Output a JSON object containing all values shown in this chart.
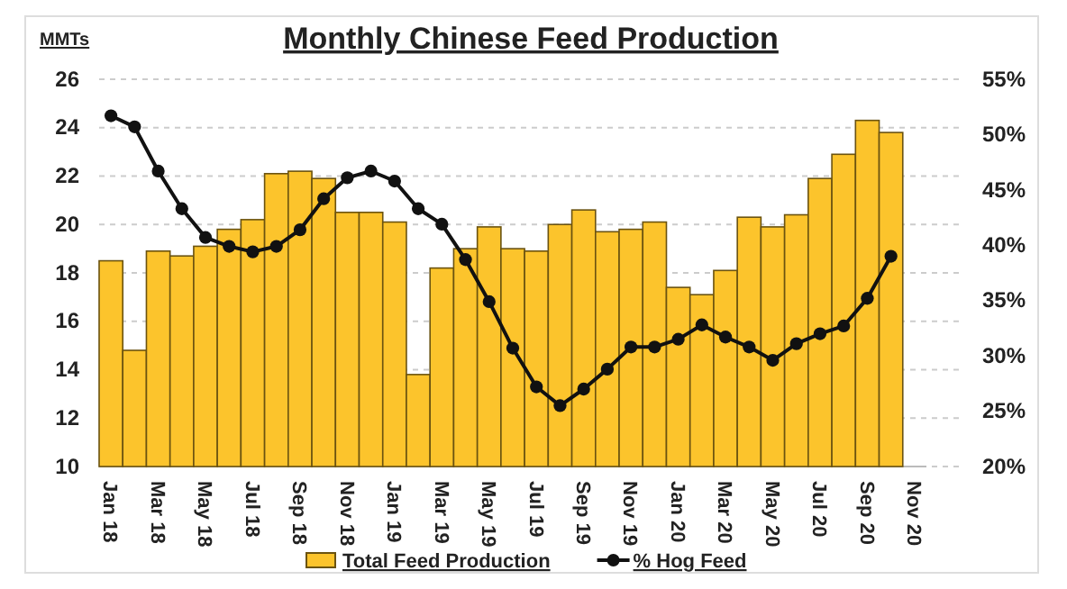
{
  "chart_data": {
    "type": "bar",
    "title": "Monthly Chinese Feed Production",
    "ylabel": "MMTs",
    "categories": [
      "Jan 18",
      null,
      "Mar 18",
      null,
      "May 18",
      null,
      "Jul 18",
      null,
      "Sep 18",
      null,
      "Nov 18",
      null,
      "Jan 19",
      null,
      "Mar 19",
      null,
      "May 19",
      null,
      "Jul 19",
      null,
      "Sep 19",
      null,
      "Nov 19",
      null,
      "Jan 20",
      null,
      "Mar 20",
      null,
      "May 20",
      null,
      "Jul 20",
      null,
      "Sep 20",
      null,
      "Nov 20"
    ],
    "series": [
      {
        "name": "Total Feed Production",
        "color": "#fcc42c",
        "values": [
          18.5,
          14.8,
          18.9,
          18.7,
          19.1,
          19.8,
          20.2,
          22.1,
          22.2,
          21.9,
          20.5,
          20.5,
          20.1,
          13.8,
          18.2,
          19.0,
          19.9,
          19.0,
          18.9,
          20.0,
          20.6,
          19.7,
          19.8,
          20.1,
          17.4,
          17.1,
          18.1,
          20.3,
          19.9,
          20.4,
          21.9,
          22.9,
          24.3,
          23.8,
          null
        ]
      },
      {
        "name": "% Hog Feed",
        "type": "line",
        "axis": "y2",
        "color": "#111111",
        "values": [
          51.7,
          50.7,
          46.7,
          43.3,
          40.7,
          39.9,
          39.4,
          39.9,
          41.4,
          44.2,
          46.1,
          46.7,
          45.8,
          43.3,
          41.9,
          38.7,
          34.9,
          30.7,
          27.2,
          25.5,
          27.0,
          28.8,
          30.8,
          30.8,
          31.5,
          32.8,
          31.7,
          30.8,
          29.6,
          31.1,
          32.0,
          32.7,
          35.2,
          39.0,
          null
        ]
      }
    ],
    "ylim": [
      10,
      26
    ],
    "yticks": [
      10,
      12,
      14,
      16,
      18,
      20,
      22,
      24,
      26
    ],
    "y2lim": [
      20,
      55
    ],
    "y2ticks": [
      {
        "value": 20,
        "label": "20%"
      },
      {
        "value": 25,
        "label": "25%"
      },
      {
        "value": 30,
        "label": "30%"
      },
      {
        "value": 35,
        "label": "35%"
      },
      {
        "value": 40,
        "label": "40%"
      },
      {
        "value": 45,
        "label": "45%"
      },
      {
        "value": 50,
        "label": "50%"
      },
      {
        "value": 55,
        "label": "55%"
      }
    ],
    "grid": "y",
    "legend": "bottom",
    "marker": "circle",
    "line_style": "solid"
  }
}
